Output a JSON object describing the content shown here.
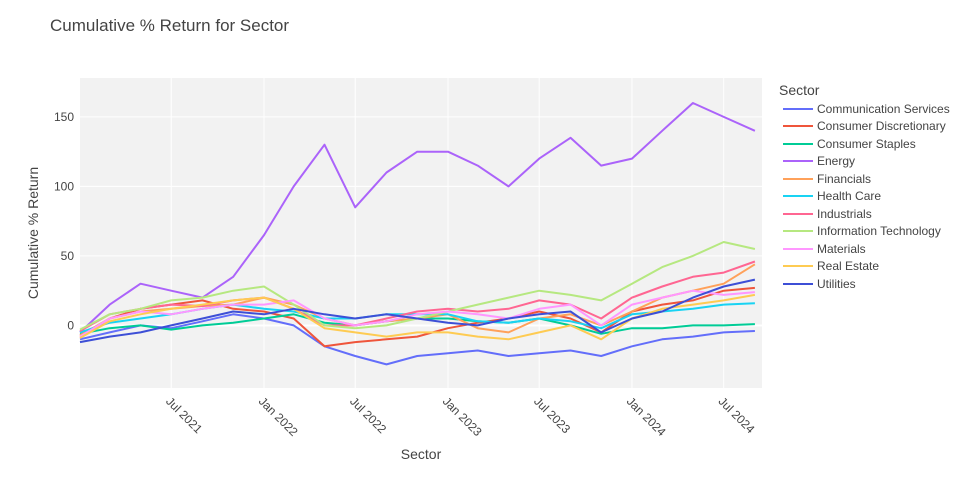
{
  "chart_data": {
    "type": "line",
    "title": "Cumulative % Return for Sector",
    "xlabel": "Sector",
    "ylabel": "Cumulative % Return",
    "legend_title": "Sector",
    "legend_position": "right",
    "grid": true,
    "x_range": [
      "2021-01-01",
      "2024-09-15"
    ],
    "ylim": [
      -45,
      178
    ],
    "x_ticks": [
      {
        "date": "2021-07-01",
        "label": "Jul 2021"
      },
      {
        "date": "2022-01-01",
        "label": "Jan 2022"
      },
      {
        "date": "2022-07-01",
        "label": "Jul 2022"
      },
      {
        "date": "2023-01-01",
        "label": "Jan 2023"
      },
      {
        "date": "2023-07-01",
        "label": "Jul 2023"
      },
      {
        "date": "2024-01-01",
        "label": "Jan 2024"
      },
      {
        "date": "2024-07-01",
        "label": "Jul 2024"
      }
    ],
    "y_ticks": [
      0,
      50,
      100,
      150
    ],
    "x": [
      "2021-01-01",
      "2021-03-01",
      "2021-05-01",
      "2021-07-01",
      "2021-09-01",
      "2021-11-01",
      "2022-01-01",
      "2022-03-01",
      "2022-05-01",
      "2022-07-01",
      "2022-09-01",
      "2022-11-01",
      "2023-01-01",
      "2023-03-01",
      "2023-05-01",
      "2023-07-01",
      "2023-09-01",
      "2023-11-01",
      "2024-01-01",
      "2024-03-01",
      "2024-05-01",
      "2024-07-01",
      "2024-09-01"
    ],
    "series": [
      {
        "name": "Communication Services",
        "color": "#636efa",
        "values": [
          -10,
          -5,
          0,
          -2,
          3,
          8,
          5,
          0,
          -15,
          -22,
          -28,
          -22,
          -20,
          -18,
          -22,
          -20,
          -18,
          -22,
          -15,
          -10,
          -8,
          -5,
          -4
        ]
      },
      {
        "name": "Consumer Discretionary",
        "color": "#ef553b",
        "values": [
          -8,
          5,
          12,
          15,
          18,
          12,
          10,
          5,
          -15,
          -12,
          -10,
          -8,
          -2,
          2,
          5,
          10,
          5,
          -5,
          10,
          15,
          18,
          25,
          27
        ]
      },
      {
        "name": "Consumer Staples",
        "color": "#00cc96",
        "values": [
          -6,
          -2,
          0,
          -3,
          0,
          2,
          5,
          8,
          2,
          0,
          3,
          5,
          5,
          3,
          2,
          5,
          0,
          -6,
          -2,
          -2,
          0,
          0,
          1
        ]
      },
      {
        "name": "Energy",
        "color": "#ab63fa",
        "values": [
          -5,
          15,
          30,
          25,
          20,
          35,
          65,
          100,
          130,
          85,
          110,
          125,
          125,
          115,
          100,
          120,
          135,
          115,
          120,
          140,
          160,
          150,
          140
        ]
      },
      {
        "name": "Financials",
        "color": "#ffa15a",
        "values": [
          -7,
          5,
          10,
          12,
          14,
          15,
          20,
          15,
          5,
          0,
          3,
          5,
          8,
          -2,
          -5,
          5,
          8,
          0,
          10,
          20,
          25,
          30,
          44
        ]
      },
      {
        "name": "Health Care",
        "color": "#19d3f3",
        "values": [
          -5,
          2,
          5,
          8,
          12,
          15,
          12,
          10,
          5,
          5,
          8,
          8,
          8,
          3,
          2,
          5,
          3,
          -2,
          8,
          10,
          12,
          15,
          16
        ]
      },
      {
        "name": "Industrials",
        "color": "#ff6692",
        "values": [
          -4,
          8,
          12,
          15,
          14,
          18,
          20,
          12,
          0,
          0,
          5,
          10,
          12,
          10,
          12,
          18,
          15,
          5,
          20,
          28,
          35,
          38,
          46
        ]
      },
      {
        "name": "Information Technology",
        "color": "#b6e880",
        "values": [
          -3,
          8,
          12,
          18,
          20,
          25,
          28,
          15,
          0,
          -2,
          0,
          5,
          10,
          15,
          20,
          25,
          22,
          18,
          30,
          42,
          50,
          60,
          55
        ]
      },
      {
        "name": "Materials",
        "color": "#ff97ff",
        "values": [
          -8,
          5,
          10,
          8,
          12,
          15,
          15,
          18,
          5,
          0,
          3,
          8,
          10,
          8,
          5,
          12,
          15,
          0,
          15,
          20,
          25,
          22,
          24
        ]
      },
      {
        "name": "Real Estate",
        "color": "#fecb52",
        "values": [
          -9,
          3,
          8,
          12,
          15,
          18,
          20,
          12,
          -2,
          -5,
          -8,
          -5,
          -5,
          -8,
          -10,
          -5,
          0,
          -10,
          5,
          12,
          15,
          18,
          22
        ]
      },
      {
        "name": "Utilities",
        "color": "#3d4fd6",
        "values": [
          -12,
          -8,
          -5,
          0,
          5,
          10,
          8,
          12,
          8,
          5,
          8,
          5,
          2,
          0,
          5,
          8,
          10,
          -5,
          5,
          10,
          20,
          28,
          33
        ]
      }
    ]
  }
}
